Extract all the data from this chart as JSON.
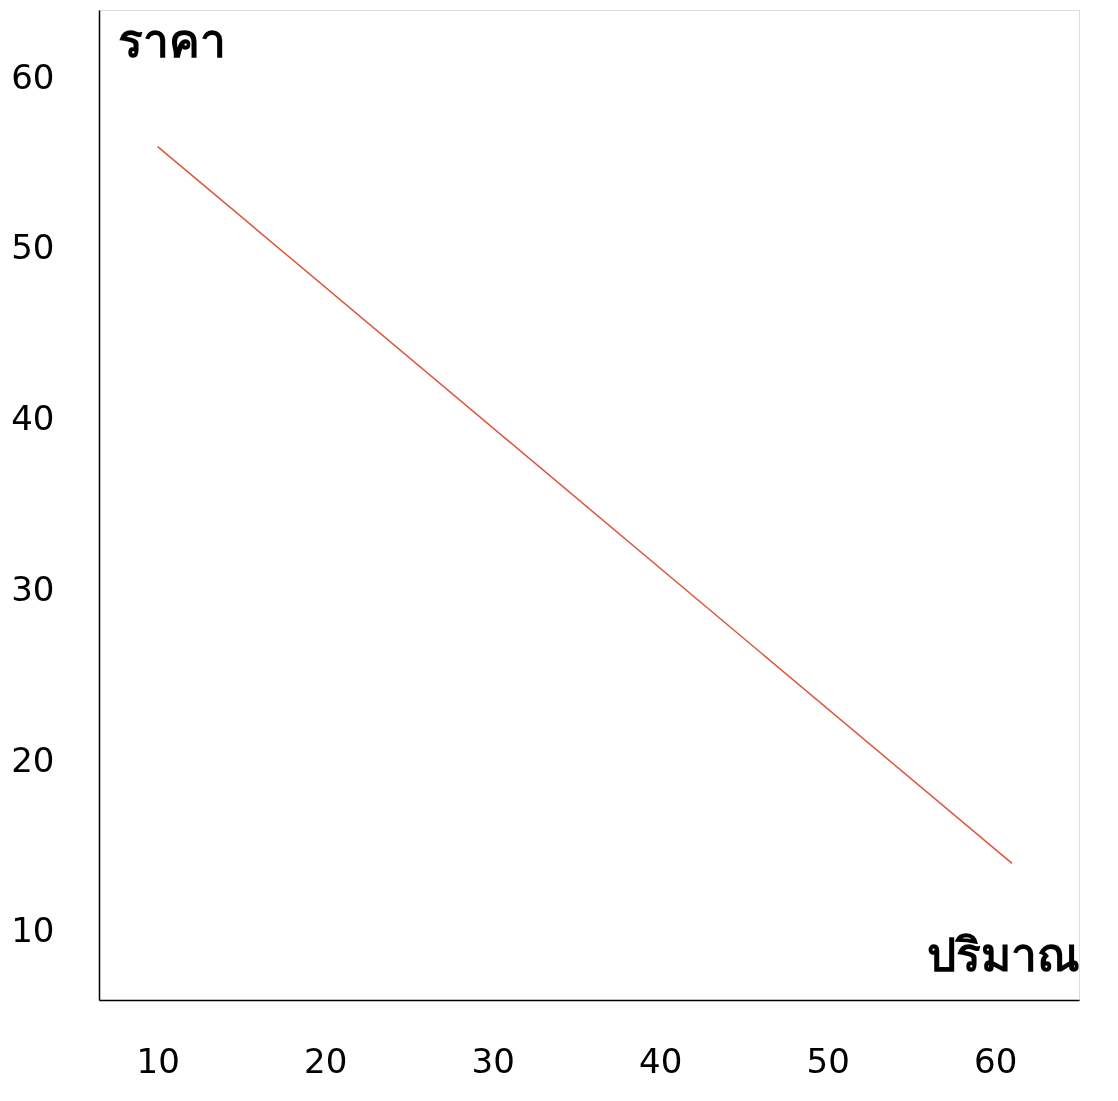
{
  "chart_data": {
    "type": "line",
    "xlabel": "ปริมาณ",
    "ylabel": "ราคา",
    "x": [
      10,
      61
    ],
    "series": [
      {
        "color": "#e0553a",
        "values": [
          56,
          14
        ]
      }
    ],
    "xlim": [
      6.5,
      65
    ],
    "ylim": [
      6,
      64
    ],
    "xticks": [
      10,
      20,
      30,
      40,
      50,
      60
    ],
    "yticks": [
      10,
      20,
      30,
      40,
      50,
      60
    ],
    "grid": false,
    "legend": false,
    "marker": "none",
    "line_style": "solid"
  }
}
